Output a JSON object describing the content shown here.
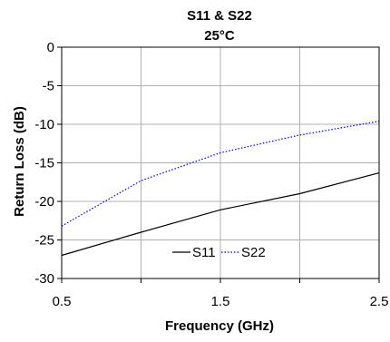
{
  "chart_data": {
    "type": "line",
    "title": "S11 & S22",
    "subtitle": "25°C",
    "xlabel": "Frequency (GHz)",
    "ylabel": "Return Loss (dB)",
    "xlim": [
      0.5,
      2.5
    ],
    "ylim": [
      -30,
      0
    ],
    "x_ticks": [
      0.5,
      1.5,
      2.5
    ],
    "x_tick_labels": [
      "0.5",
      "1.5",
      "2.5"
    ],
    "x_gridlines": [
      0.5,
      1.0,
      1.5,
      2.0,
      2.5
    ],
    "y_ticks": [
      0,
      -5,
      -10,
      -15,
      -20,
      -25,
      -30
    ],
    "y_tick_labels": [
      "0",
      "-5",
      "-10",
      "-15",
      "-20",
      "-25",
      "-30"
    ],
    "grid": true,
    "legend_position": "bottom-center",
    "series": [
      {
        "name": "S11",
        "style": "solid",
        "color": "#000000",
        "x": [
          0.5,
          1.0,
          1.5,
          2.0,
          2.5
        ],
        "y": [
          -27.0,
          -24.0,
          -21.1,
          -19.0,
          -16.3
        ]
      },
      {
        "name": "S22",
        "style": "dotted",
        "color": "#0000cc",
        "x": [
          0.5,
          1.0,
          1.5,
          2.0,
          2.5
        ],
        "y": [
          -23.2,
          -17.3,
          -13.7,
          -11.4,
          -9.6
        ]
      }
    ]
  }
}
